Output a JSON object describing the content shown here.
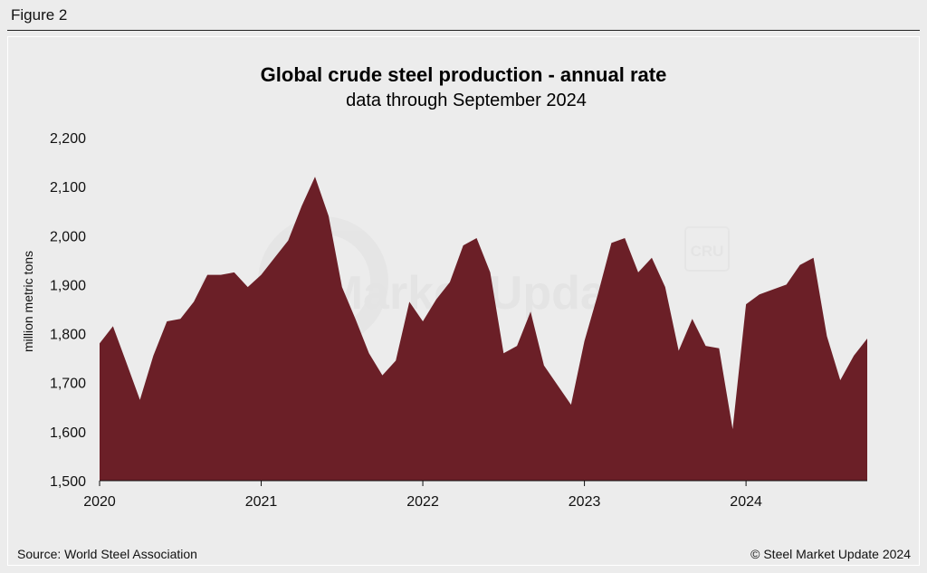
{
  "figure_label": "Figure 2",
  "source": "Source: World Steel Association",
  "copyright": "© Steel Market Update 2024",
  "watermark": {
    "brand": "Steel Market Update",
    "logo": "CRU"
  },
  "colors": {
    "area": "#6b1f27",
    "background": "#ececec"
  },
  "chart_data": {
    "type": "area",
    "title": "Global crude steel production - annual rate",
    "subtitle": "data through September 2024",
    "xlabel": "",
    "ylabel": "million metric tons",
    "xlim": [
      2020.0,
      2024.75
    ],
    "ylim": [
      1500,
      2200
    ],
    "yticks": [
      1500,
      1600,
      1700,
      1800,
      1900,
      2000,
      2100,
      2200
    ],
    "ytick_labels": [
      "1,500",
      "1,600",
      "1,700",
      "1,800",
      "1,900",
      "2,000",
      "2,100",
      "2,200"
    ],
    "xticks": [
      2020,
      2021,
      2022,
      2023,
      2024
    ],
    "xtick_labels": [
      "2020",
      "2021",
      "2022",
      "2023",
      "2024"
    ],
    "grid": false,
    "series": [
      {
        "name": "Global crude steel production (annual rate)",
        "x": [
          2020.0,
          2020.083,
          2020.167,
          2020.25,
          2020.333,
          2020.417,
          2020.5,
          2020.583,
          2020.667,
          2020.75,
          2020.833,
          2020.917,
          2021.0,
          2021.083,
          2021.167,
          2021.25,
          2021.333,
          2021.417,
          2021.5,
          2021.583,
          2021.667,
          2021.75,
          2021.833,
          2021.917,
          2022.0,
          2022.083,
          2022.167,
          2022.25,
          2022.333,
          2022.417,
          2022.5,
          2022.583,
          2022.667,
          2022.75,
          2022.833,
          2022.917,
          2023.0,
          2023.083,
          2023.167,
          2023.25,
          2023.333,
          2023.417,
          2023.5,
          2023.583,
          2023.667,
          2023.75,
          2023.833,
          2023.917,
          2024.0,
          2024.083,
          2024.167,
          2024.25,
          2024.333,
          2024.417,
          2024.5,
          2024.583,
          2024.667,
          2024.75
        ],
        "values": [
          1780,
          1815,
          1740,
          1665,
          1755,
          1825,
          1830,
          1865,
          1920,
          1920,
          1925,
          1895,
          1920,
          1955,
          1990,
          2060,
          2120,
          2040,
          1895,
          1830,
          1760,
          1715,
          1745,
          1865,
          1825,
          1870,
          1905,
          1980,
          1995,
          1925,
          1760,
          1775,
          1845,
          1735,
          1695,
          1655,
          1785,
          1880,
          1985,
          1995,
          1925,
          1955,
          1895,
          1765,
          1830,
          1775,
          1770,
          1605,
          1860,
          1880,
          1890,
          1900,
          1940,
          1955,
          1795,
          1705,
          1755,
          1790
        ]
      }
    ]
  }
}
